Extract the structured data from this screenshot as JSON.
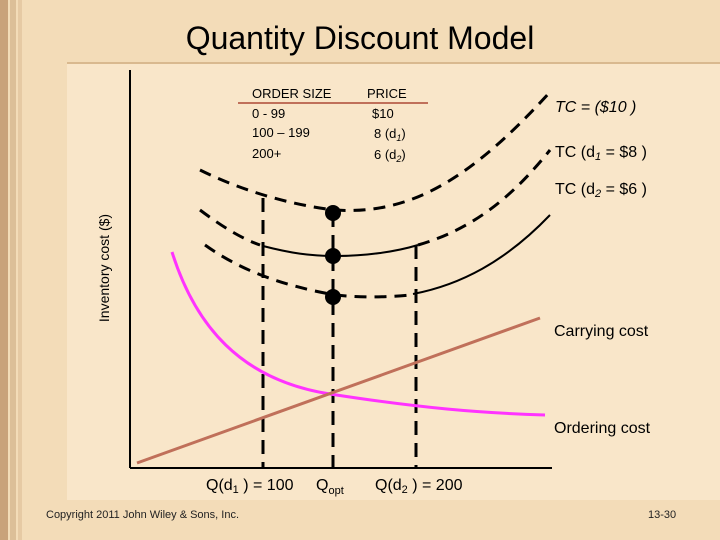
{
  "title": "Quantity Discount Model",
  "table": {
    "header_order": "ORDER SIZE",
    "header_price": "PRICE",
    "rows": [
      {
        "order": "0 - 99",
        "price": "$10",
        "sub": ""
      },
      {
        "order": "100 – 199",
        "price": "8 (d",
        "sub": "1"
      },
      {
        "order": "200+",
        "price": "6 (d",
        "sub": "2"
      }
    ]
  },
  "curve_labels": {
    "tc": "TC = ($10 )",
    "tc1_a": "TC (d",
    "tc1_sub": "1",
    "tc1_b": " = $8 )",
    "tc2_a": "TC (d",
    "tc2_sub": "2",
    "tc2_b": " = $6 )",
    "carrying": "Carrying cost",
    "ordering": "Ordering cost"
  },
  "axis": {
    "ylabel": "Inventory cost ($)",
    "q1_a": "Q(d",
    "q1_sub": "1",
    "q1_b": " ) = 100",
    "qopt_a": "Q",
    "qopt_sub": "opt",
    "q2_a": "Q(d",
    "q2_sub": "2",
    "q2_b": " ) = 200"
  },
  "footer": {
    "copyright": "Copyright 2011 John Wiley & Sons, Inc.",
    "page": "13-30"
  },
  "colors": {
    "carrying": "#c0705a",
    "ordering": "#ff33ff",
    "stripe_dark": "#c9a27a",
    "stripe_mid": "#dcbf98"
  }
}
